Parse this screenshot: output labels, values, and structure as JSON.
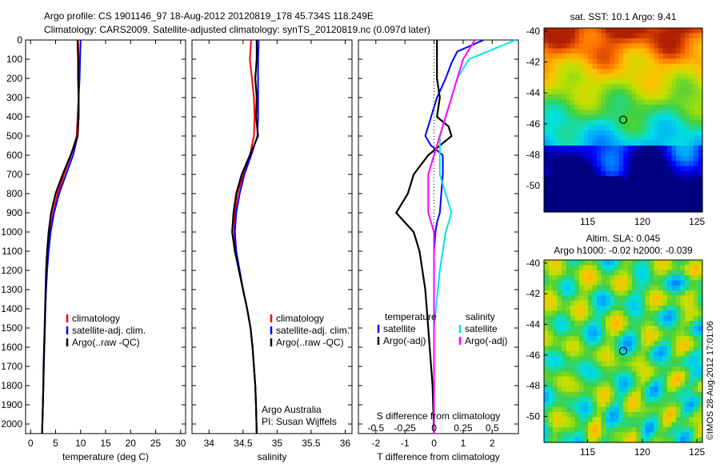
{
  "header": {
    "line1": "Argo profile: CS 1901146_97 18-Aug-2012 20120819_178 45.734S 118.249E",
    "line2": "Climatology: CARS2009. Satellite-adjusted climatology: synTS_20120819.nc (0.097d later)"
  },
  "colors": {
    "climatology": "#ff0000",
    "satellite": "#0000ff",
    "argo": "#000000",
    "sat_salinity": "#00e5e5",
    "argo_salinity_adj": "#ff00ff"
  },
  "chart_data": [
    {
      "type": "line",
      "panel": "temperature",
      "xlabel": "temperature (deg C)",
      "ylabel": "",
      "xlim": [
        -1,
        31
      ],
      "ylim": [
        2050,
        0
      ],
      "x_ticks": [
        "0",
        "5",
        "10",
        "15",
        "20",
        "25",
        "30"
      ],
      "x_tick_values": [
        0,
        5,
        10,
        15,
        20,
        25,
        30
      ],
      "y_ticks": [
        "0",
        "100",
        "200",
        "300",
        "400",
        "500",
        "600",
        "700",
        "800",
        "900",
        "1000",
        "1100",
        "1200",
        "1300",
        "1400",
        "1500",
        "1600",
        "1700",
        "1800",
        "1900",
        "2000"
      ],
      "legend": [
        "climatology",
        "satellite-adj. clim.",
        "Argo(..raw -QC)"
      ],
      "series": [
        {
          "name": "climatology",
          "color": "#ff0000",
          "depth": [
            0,
            100,
            200,
            300,
            400,
            500,
            600,
            700,
            800,
            900,
            1000,
            1100,
            1200,
            1300,
            1400,
            1500,
            1600,
            1700,
            1800,
            1900,
            2050
          ],
          "values": [
            9.5,
            9.6,
            9.7,
            9.6,
            9.4,
            9.2,
            8.1,
            6.7,
            5.4,
            4.5,
            3.9,
            3.5,
            3.3,
            3.1,
            2.95,
            2.85,
            2.75,
            2.65,
            2.55,
            2.45,
            2.3
          ]
        },
        {
          "name": "satellite-adj. clim.",
          "color": "#0000ff",
          "depth": [
            0,
            100,
            200,
            300,
            400,
            500,
            600,
            700,
            800,
            900,
            1000,
            1100,
            1200,
            1300,
            1400,
            1500,
            1600,
            1700,
            1800,
            1900,
            2050
          ],
          "values": [
            10.0,
            9.9,
            9.8,
            9.6,
            9.5,
            9.4,
            8.5,
            7.1,
            5.7,
            4.7,
            4.0,
            3.6,
            3.3,
            3.1,
            2.95,
            2.85,
            2.75,
            2.65,
            2.55,
            2.45,
            2.3
          ]
        },
        {
          "name": "Argo(..raw -QC)",
          "color": "#000000",
          "depth": [
            0,
            100,
            200,
            300,
            400,
            500,
            600,
            700,
            800,
            900,
            1000,
            1100,
            1200,
            1300,
            1400,
            1500,
            1600,
            1700,
            1800,
            1900,
            2050
          ],
          "values": [
            9.4,
            9.5,
            9.5,
            9.6,
            9.6,
            9.4,
            8.0,
            6.4,
            5.0,
            4.1,
            3.6,
            3.3,
            3.1,
            3.0,
            2.9,
            2.8,
            2.7,
            2.6,
            2.55,
            2.45,
            2.3
          ]
        }
      ]
    },
    {
      "type": "line",
      "panel": "salinity",
      "xlabel": "salinity",
      "ylabel": "",
      "xlim": [
        33.75,
        36.1
      ],
      "ylim": [
        2050,
        0
      ],
      "x_ticks": [
        "34",
        "34.5",
        "35",
        "35.5",
        "36"
      ],
      "x_tick_values": [
        34,
        34.5,
        35,
        35.5,
        36
      ],
      "legend": [
        "climatology",
        "satellite-adj. clim.",
        "Argo(..raw -QC)"
      ],
      "annotation": [
        "Argo Australia",
        "PI: Susan Wijffels"
      ],
      "series": [
        {
          "name": "climatology",
          "color": "#ff0000",
          "depth": [
            0,
            100,
            200,
            300,
            400,
            500,
            600,
            700,
            800,
            900,
            1000,
            1100,
            1200,
            1300,
            1400,
            1500,
            1600,
            1700,
            1800,
            1900,
            2050
          ],
          "values": [
            34.62,
            34.6,
            34.63,
            34.66,
            34.67,
            34.66,
            34.6,
            34.5,
            34.42,
            34.38,
            34.37,
            34.39,
            34.44,
            34.5,
            34.56,
            34.61,
            34.64,
            34.66,
            34.68,
            34.69,
            34.7
          ]
        },
        {
          "name": "satellite-adj. clim.",
          "color": "#0000ff",
          "depth": [
            0,
            100,
            200,
            300,
            400,
            500,
            600,
            700,
            800,
            900,
            1000,
            1100,
            1200,
            1300,
            1400,
            1500,
            1600,
            1700,
            1800,
            1900,
            2050
          ],
          "values": [
            34.73,
            34.72,
            34.72,
            34.72,
            34.72,
            34.71,
            34.62,
            34.52,
            34.45,
            34.4,
            34.38,
            34.4,
            34.45,
            34.5,
            34.56,
            34.61,
            34.64,
            34.66,
            34.68,
            34.69,
            34.7
          ]
        },
        {
          "name": "Argo(..raw -QC)",
          "color": "#000000",
          "depth": [
            0,
            100,
            200,
            300,
            400,
            500,
            600,
            700,
            800,
            900,
            1000,
            1100,
            1200,
            1300,
            1400,
            1500,
            1600,
            1700,
            1800,
            1900,
            2050
          ],
          "values": [
            34.7,
            34.7,
            34.68,
            34.7,
            34.69,
            34.72,
            34.6,
            34.48,
            34.4,
            34.36,
            34.34,
            34.38,
            34.44,
            34.5,
            34.56,
            34.61,
            34.64,
            34.66,
            34.68,
            34.69,
            34.7
          ]
        }
      ]
    },
    {
      "type": "line",
      "panel": "difference",
      "xlabel": "T difference from climatology",
      "xlabel_top": "S difference from climatology",
      "xlim": [
        -2.6,
        2.9
      ],
      "ylim": [
        2050,
        0
      ],
      "x_ticks": [
        "-2",
        "-1",
        "0",
        "1",
        "2"
      ],
      "x_tick_values": [
        -2,
        -1,
        0,
        1,
        2
      ],
      "s_ticks": [
        "-0.5",
        "-0.25",
        "0",
        "0.25",
        "0.5"
      ],
      "legend_temperature": [
        "temperature",
        "satellite",
        "Argo(-adj)"
      ],
      "legend_salinity": [
        "salinity",
        "satellite",
        "Argo(-adj)"
      ],
      "series": [
        {
          "name": "satellite",
          "color": "#0000ff",
          "depth": [
            0,
            60,
            120,
            200,
            300,
            400,
            500,
            550,
            600,
            700,
            800,
            900,
            950,
            1000,
            1100,
            1200,
            1400,
            1600,
            2050
          ],
          "values": [
            1.7,
            0.8,
            0.6,
            0.4,
            0.1,
            -0.1,
            -0.3,
            -0.1,
            0.3,
            0.3,
            0.25,
            0.2,
            0.1,
            0.05,
            0.0,
            0.0,
            0.0,
            0.0,
            0.0
          ]
        },
        {
          "name": "Argo(-adj)",
          "color": "#000000",
          "depth": [
            0,
            100,
            200,
            300,
            400,
            450,
            500,
            550,
            600,
            700,
            800,
            900,
            950,
            1000,
            1100,
            1200,
            1300,
            1400,
            1500,
            1600,
            1700,
            1800,
            2050
          ],
          "values": [
            0.1,
            0.1,
            0.1,
            0.2,
            0.1,
            0.5,
            0.6,
            0.2,
            -0.2,
            -0.7,
            -0.9,
            -1.3,
            -1.0,
            -0.7,
            -0.5,
            -0.4,
            -0.3,
            -0.25,
            -0.2,
            -0.15,
            -0.1,
            -0.05,
            0.0
          ]
        },
        {
          "name": "satellite",
          "color": "#00e5e5",
          "depth": [
            0,
            100,
            200,
            300,
            400,
            500,
            600,
            700,
            800,
            900,
            1000,
            1200,
            1500,
            2050
          ],
          "values": [
            0.7,
            0.3,
            0.2,
            0.15,
            0.1,
            0.05,
            0.05,
            0.05,
            0.1,
            0.15,
            0.1,
            0.05,
            0.0,
            0.0
          ]
        },
        {
          "name": "Argo(-adj)",
          "color": "#ff00ff",
          "depth": [
            0,
            100,
            200,
            300,
            400,
            500,
            600,
            700,
            800,
            900,
            1000,
            1100,
            1200,
            1500,
            2050
          ],
          "values": [
            0.35,
            0.25,
            0.2,
            0.15,
            0.1,
            0.05,
            0.0,
            -0.05,
            -0.05,
            -0.05,
            0.0,
            0.0,
            0.0,
            0.0,
            0.0
          ]
        }
      ]
    },
    {
      "type": "heatmap",
      "panel": "sst_map",
      "title": "sat. SST: 10.1  Argo: 9.41",
      "x_ticks": [
        "115",
        "120",
        "125"
      ],
      "y_ticks": [
        "-40",
        "-42",
        "-44",
        "-46",
        "-48",
        "-50"
      ],
      "xlim": [
        111,
        125.5
      ],
      "ylim": [
        -51.7,
        -39.8
      ],
      "argo_position": [
        118.249,
        -45.734
      ]
    },
    {
      "type": "heatmap",
      "panel": "sla_map",
      "title": "Altim. SLA: 0.045",
      "subtitle": "Argo h1000: -0.02 h2000: -0.039",
      "x_ticks": [
        "115",
        "120",
        "125"
      ],
      "y_ticks": [
        "-40",
        "-42",
        "-44",
        "-46",
        "-48",
        "-50"
      ],
      "xlim": [
        111,
        125.5
      ],
      "ylim": [
        -51.7,
        -39.8
      ],
      "argo_position": [
        118.249,
        -45.734
      ]
    }
  ],
  "side_label": "©IMOS 28-Aug-2012 17:01:06"
}
